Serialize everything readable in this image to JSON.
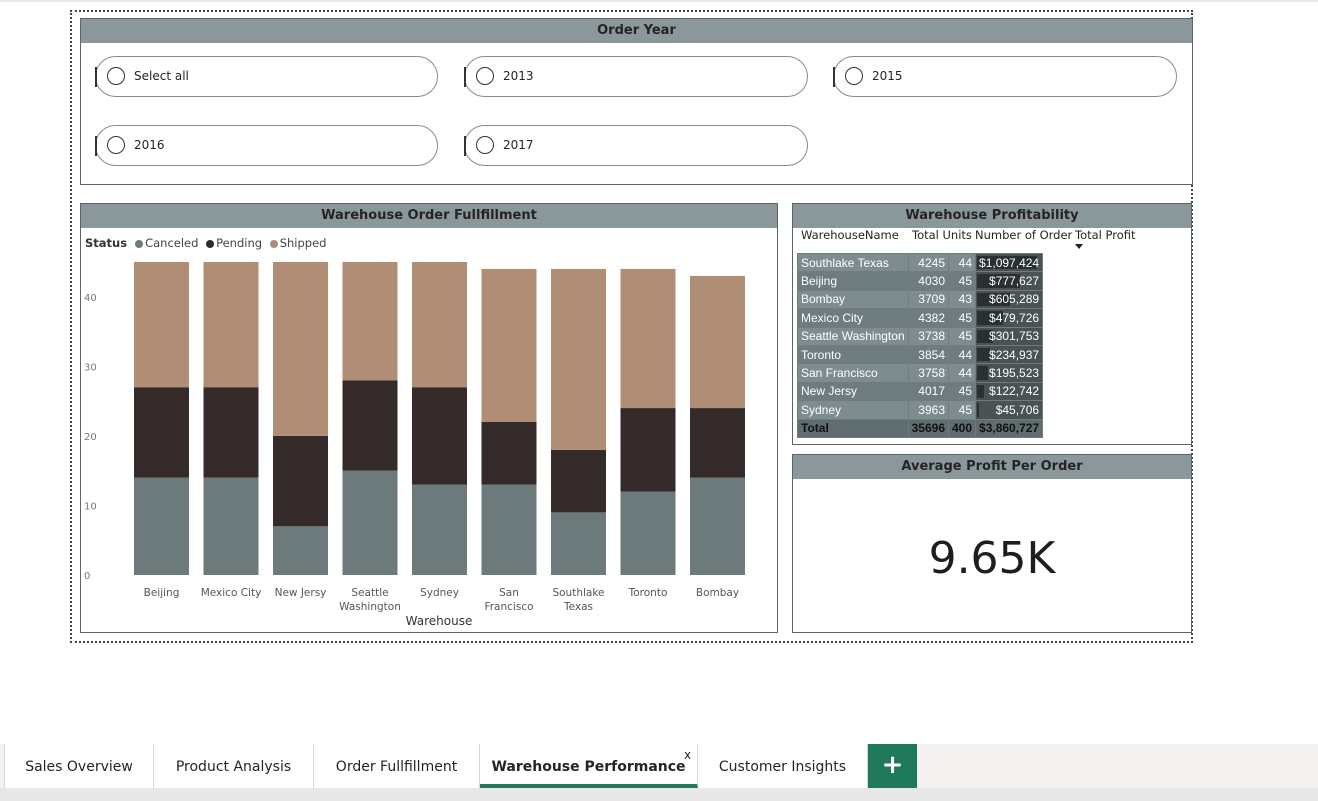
{
  "slicer": {
    "title": "Order Year",
    "options": [
      "Select all",
      "2013",
      "2015",
      "2016",
      "2017"
    ]
  },
  "fulfillment": {
    "title": "Warehouse Order Fullfillment",
    "legend_title": "Status",
    "series_names": [
      "Canceled",
      "Pending",
      "Shipped"
    ]
  },
  "profitability": {
    "title": "Warehouse Profitability",
    "columns": [
      "WarehouseName",
      "Total Units",
      "Number of Order",
      "Total Profit"
    ],
    "sort_icon": "sort-descending-icon",
    "rows": [
      {
        "name": "Southlake Texas",
        "units": "4245",
        "orders": "44",
        "profit": "$1,097,424",
        "profit_value": 1097424
      },
      {
        "name": "Beijing",
        "units": "4030",
        "orders": "45",
        "profit": "$777,627",
        "profit_value": 777627
      },
      {
        "name": "Bombay",
        "units": "3709",
        "orders": "43",
        "profit": "$605,289",
        "profit_value": 605289
      },
      {
        "name": "Mexico City",
        "units": "4382",
        "orders": "45",
        "profit": "$479,726",
        "profit_value": 479726
      },
      {
        "name": "Seattle Washington",
        "units": "3738",
        "orders": "45",
        "profit": "$301,753",
        "profit_value": 301753
      },
      {
        "name": "Toronto",
        "units": "3854",
        "orders": "44",
        "profit": "$234,937",
        "profit_value": 234937
      },
      {
        "name": "San Francisco",
        "units": "3758",
        "orders": "44",
        "profit": "$195,523",
        "profit_value": 195523
      },
      {
        "name": "New Jersy",
        "units": "4017",
        "orders": "45",
        "profit": "$122,742",
        "profit_value": 122742
      },
      {
        "name": "Sydney",
        "units": "3963",
        "orders": "45",
        "profit": "$45,706",
        "profit_value": 45706
      }
    ],
    "total": {
      "name": "Total",
      "units": "35696",
      "orders": "400",
      "profit": "$3,860,727"
    }
  },
  "kpi": {
    "title": "Average Profit Per Order",
    "value": "9.65K"
  },
  "tabs": {
    "items": [
      "Sales Overview",
      "Product Analysis",
      "Order Fullfillment",
      "Warehouse Performance",
      "Customer Insights"
    ],
    "active": "Warehouse Performance",
    "close_label": "x",
    "add_label": "+"
  },
  "colors": {
    "canceled": "#6c7a7c",
    "pending": "#352a2a",
    "shipped": "#b08e76",
    "header_bg": "#8a989b",
    "accent": "#1f7a5c"
  },
  "chart_data": {
    "type": "bar",
    "stacked": true,
    "categories": [
      "Beijing",
      "Mexico City",
      "New Jersy",
      "Seattle Washington",
      "Sydney",
      "San Francisco",
      "Southlake Texas",
      "Toronto",
      "Bombay"
    ],
    "series": [
      {
        "name": "Canceled",
        "values": [
          14,
          14,
          7,
          15,
          13,
          13,
          9,
          12,
          14
        ]
      },
      {
        "name": "Pending",
        "values": [
          13,
          13,
          13,
          13,
          14,
          9,
          9,
          12,
          10
        ]
      },
      {
        "name": "Shipped",
        "values": [
          18,
          18,
          25,
          17,
          18,
          22,
          26,
          20,
          19
        ]
      }
    ],
    "xlabel": "Warehouse",
    "ylabel": "",
    "ylim": [
      0,
      45
    ],
    "yticks": [
      0,
      10,
      20,
      30,
      40
    ],
    "legend_position": "top-left",
    "grid": false
  }
}
